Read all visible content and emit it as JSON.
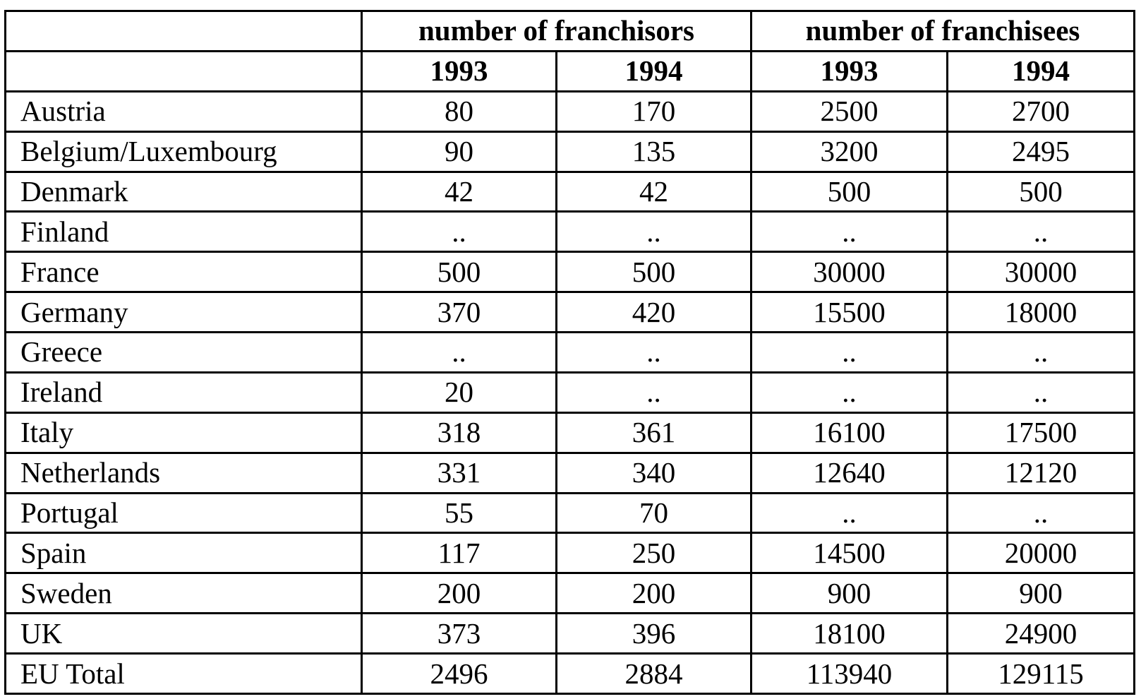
{
  "table": {
    "group_headers": [
      "number of franchisors",
      "number of franchisees"
    ],
    "year_headers": [
      "1993",
      "1994",
      "1993",
      "1994"
    ],
    "rows": [
      {
        "country": "Austria",
        "values": [
          "80",
          "170",
          "2500",
          "2700"
        ]
      },
      {
        "country": "Belgium/Luxembourg",
        "values": [
          "90",
          "135",
          "3200",
          "2495"
        ]
      },
      {
        "country": "Denmark",
        "values": [
          "42",
          "42",
          "500",
          "500"
        ]
      },
      {
        "country": "Finland",
        "values": [
          "..",
          "..",
          "..",
          ".."
        ]
      },
      {
        "country": "France",
        "values": [
          "500",
          "500",
          "30000",
          "30000"
        ]
      },
      {
        "country": "Germany",
        "values": [
          "370",
          "420",
          "15500",
          "18000"
        ]
      },
      {
        "country": "Greece",
        "values": [
          "..",
          "..",
          "..",
          ".."
        ]
      },
      {
        "country": "Ireland",
        "values": [
          "20",
          "..",
          "..",
          ".."
        ]
      },
      {
        "country": "Italy",
        "values": [
          "318",
          "361",
          "16100",
          "17500"
        ]
      },
      {
        "country": "Netherlands",
        "values": [
          "331",
          "340",
          "12640",
          "12120"
        ]
      },
      {
        "country": "Portugal",
        "values": [
          "55",
          "70",
          "..",
          ".."
        ]
      },
      {
        "country": "Spain",
        "values": [
          "117",
          "250",
          "14500",
          "20000"
        ]
      },
      {
        "country": "Sweden",
        "values": [
          "200",
          "200",
          "900",
          "900"
        ]
      },
      {
        "country": "UK",
        "values": [
          "373",
          "396",
          "18100",
          "24900"
        ]
      },
      {
        "country": "EU Total",
        "values": [
          "2496",
          "2884",
          "113940",
          "129115"
        ]
      }
    ]
  }
}
